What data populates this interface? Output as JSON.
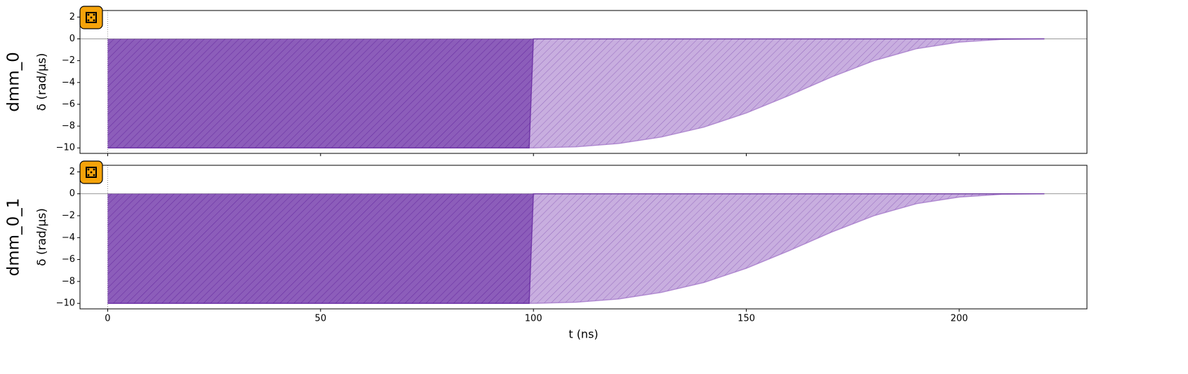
{
  "chart_data": [
    {
      "type": "line",
      "channel": "dmm_0",
      "ylabel": "δ (rad/µs)",
      "xlim": [
        -6.5,
        230
      ],
      "ylim": [
        -10.5,
        2.6
      ],
      "xticks": [
        0,
        50,
        100,
        150,
        200
      ],
      "show_xticklabels": false,
      "yticks": [
        {
          "value": -10,
          "label": "−10"
        },
        {
          "value": -8,
          "label": "−8"
        },
        {
          "value": -6,
          "label": "−6"
        },
        {
          "value": -4,
          "label": "−4"
        },
        {
          "value": -2,
          "label": "−2"
        },
        0,
        2
      ],
      "series": [
        {
          "color": "#9b6bc4",
          "fill": true,
          "x": [
            0,
            100,
            110,
            120,
            130,
            140,
            150,
            160,
            170,
            180,
            190,
            200,
            210,
            220
          ],
          "values": [
            -10,
            -10,
            -9.9,
            -9.6,
            -9.0,
            -8.1,
            -6.8,
            -5.2,
            -3.5,
            -2.0,
            -0.9,
            -0.3,
            -0.05,
            0
          ]
        },
        {
          "color": "#5b1b9a",
          "fill": true,
          "x": [
            0,
            99,
            100,
            220
          ],
          "values": [
            -10,
            -10,
            0,
            0
          ]
        }
      ]
    },
    {
      "type": "line",
      "channel": "dmm_0_1",
      "ylabel": "δ (rad/µs)",
      "xlabel": "t (ns)",
      "xlim": [
        -6.5,
        230
      ],
      "ylim": [
        -10.5,
        2.6
      ],
      "xticks": [
        0,
        50,
        100,
        150,
        200
      ],
      "show_xticklabels": true,
      "yticks": [
        {
          "value": -10,
          "label": "−10"
        },
        {
          "value": -8,
          "label": "−8"
        },
        {
          "value": -6,
          "label": "−6"
        },
        {
          "value": -4,
          "label": "−4"
        },
        {
          "value": -2,
          "label": "−2"
        },
        0,
        2
      ],
      "series": [
        {
          "color": "#9b6bc4",
          "fill": true,
          "x": [
            0,
            100,
            110,
            120,
            130,
            140,
            150,
            160,
            170,
            180,
            190,
            200,
            210,
            220
          ],
          "values": [
            -10,
            -10,
            -9.9,
            -9.6,
            -9.0,
            -8.1,
            -6.8,
            -5.2,
            -3.5,
            -2.0,
            -0.9,
            -0.3,
            -0.05,
            0
          ]
        },
        {
          "color": "#5b1b9a",
          "fill": true,
          "x": [
            0,
            99,
            100,
            220
          ],
          "values": [
            -10,
            -10,
            0,
            0
          ]
        }
      ]
    }
  ]
}
